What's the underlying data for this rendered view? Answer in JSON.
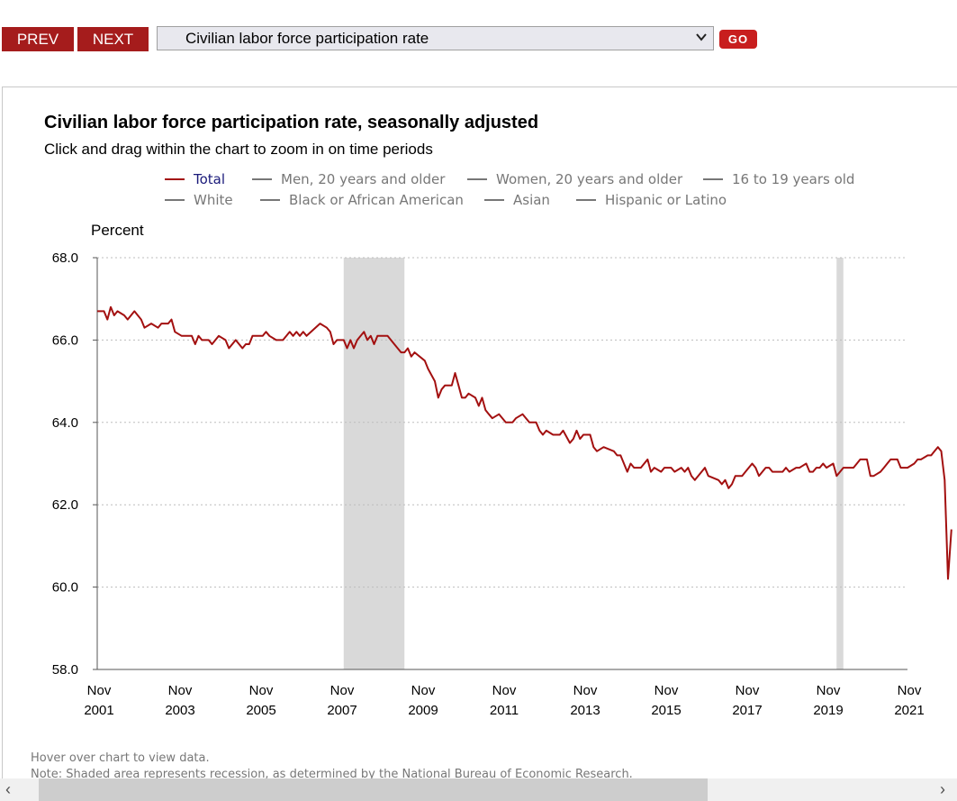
{
  "toolbar": {
    "prev_label": "PREV",
    "next_label": "NEXT",
    "select_value": "Civilian labor force participation rate",
    "go_label": "GO"
  },
  "chart_header": {
    "title": "Civilian labor force participation rate, seasonally adjusted",
    "subtitle": "Click and drag within the chart to zoom in on time periods"
  },
  "legend": [
    {
      "label": "Total",
      "active": true
    },
    {
      "label": "Men, 20 years and older",
      "active": false
    },
    {
      "label": "Women, 20 years and older",
      "active": false
    },
    {
      "label": "16 to 19 years old",
      "active": false
    },
    {
      "label": "White",
      "active": false
    },
    {
      "label": "Black or African American",
      "active": false
    },
    {
      "label": "Asian",
      "active": false
    },
    {
      "label": "Hispanic or Latino",
      "active": false
    }
  ],
  "footnotes": {
    "hover": "Hover over chart to view data.",
    "note": "Note: Shaded area represents recession, as determined by the National Bureau of Economic Research."
  },
  "colors": {
    "series": "#a31010",
    "recession": "#d9d9d9",
    "button": "#a51c1c",
    "go_button": "#c81e1e"
  },
  "icons": {
    "select_arrow": "chevron-down-icon",
    "scroll_left": "chevron-left-icon",
    "scroll_right": "chevron-right-icon"
  },
  "chart_data": {
    "type": "line",
    "ylabel": "Percent",
    "ylim": [
      58.0,
      68.0
    ],
    "yticks": [
      "58.0",
      "60.0",
      "62.0",
      "64.0",
      "66.0",
      "68.0"
    ],
    "xlim": [
      "2001-11",
      "2021-11"
    ],
    "xticks": [
      {
        "month": "Nov",
        "year": "2001"
      },
      {
        "month": "Nov",
        "year": "2003"
      },
      {
        "month": "Nov",
        "year": "2005"
      },
      {
        "month": "Nov",
        "year": "2007"
      },
      {
        "month": "Nov",
        "year": "2009"
      },
      {
        "month": "Nov",
        "year": "2011"
      },
      {
        "month": "Nov",
        "year": "2013"
      },
      {
        "month": "Nov",
        "year": "2015"
      },
      {
        "month": "Nov",
        "year": "2017"
      },
      {
        "month": "Nov",
        "year": "2019"
      },
      {
        "month": "Nov",
        "year": "2021"
      }
    ],
    "grid": "horizontal dotted",
    "recessions": [
      {
        "start": "2007-12",
        "end": "2009-06"
      },
      {
        "start": "2020-02",
        "end": "2020-04"
      }
    ],
    "series": [
      {
        "name": "Total",
        "points": [
          [
            "2001-11",
            66.7
          ],
          [
            "2002-01",
            66.7
          ],
          [
            "2002-02",
            66.5
          ],
          [
            "2002-03",
            66.8
          ],
          [
            "2002-04",
            66.6
          ],
          [
            "2002-05",
            66.7
          ],
          [
            "2002-07",
            66.6
          ],
          [
            "2002-08",
            66.5
          ],
          [
            "2002-10",
            66.7
          ],
          [
            "2002-12",
            66.5
          ],
          [
            "2003-01",
            66.3
          ],
          [
            "2003-03",
            66.4
          ],
          [
            "2003-05",
            66.3
          ],
          [
            "2003-06",
            66.4
          ],
          [
            "2003-08",
            66.4
          ],
          [
            "2003-09",
            66.5
          ],
          [
            "2003-10",
            66.2
          ],
          [
            "2003-12",
            66.1
          ],
          [
            "2004-03",
            66.1
          ],
          [
            "2004-04",
            65.9
          ],
          [
            "2004-05",
            66.1
          ],
          [
            "2004-06",
            66.0
          ],
          [
            "2004-08",
            66.0
          ],
          [
            "2004-09",
            65.9
          ],
          [
            "2004-11",
            66.1
          ],
          [
            "2005-01",
            66.0
          ],
          [
            "2005-02",
            65.8
          ],
          [
            "2005-04",
            66.0
          ],
          [
            "2005-06",
            65.8
          ],
          [
            "2005-07",
            65.9
          ],
          [
            "2005-08",
            65.9
          ],
          [
            "2005-09",
            66.1
          ],
          [
            "2005-12",
            66.1
          ],
          [
            "2006-01",
            66.2
          ],
          [
            "2006-02",
            66.1
          ],
          [
            "2006-04",
            66.0
          ],
          [
            "2006-06",
            66.0
          ],
          [
            "2006-08",
            66.2
          ],
          [
            "2006-09",
            66.1
          ],
          [
            "2006-10",
            66.2
          ],
          [
            "2006-11",
            66.1
          ],
          [
            "2006-12",
            66.2
          ],
          [
            "2007-01",
            66.1
          ],
          [
            "2007-05",
            66.4
          ],
          [
            "2007-07",
            66.3
          ],
          [
            "2007-08",
            66.2
          ],
          [
            "2007-09",
            65.9
          ],
          [
            "2007-10",
            66.0
          ],
          [
            "2007-12",
            66.0
          ],
          [
            "2008-01",
            65.8
          ],
          [
            "2008-02",
            66.0
          ],
          [
            "2008-03",
            65.8
          ],
          [
            "2008-04",
            66.0
          ],
          [
            "2008-06",
            66.2
          ],
          [
            "2008-07",
            66.0
          ],
          [
            "2008-08",
            66.1
          ],
          [
            "2008-09",
            65.9
          ],
          [
            "2008-10",
            66.1
          ],
          [
            "2009-01",
            66.1
          ],
          [
            "2009-03",
            65.9
          ],
          [
            "2009-05",
            65.7
          ],
          [
            "2009-06",
            65.7
          ],
          [
            "2009-07",
            65.8
          ],
          [
            "2009-08",
            65.6
          ],
          [
            "2009-09",
            65.7
          ],
          [
            "2009-12",
            65.5
          ],
          [
            "2010-01",
            65.3
          ],
          [
            "2010-03",
            65.0
          ],
          [
            "2010-04",
            64.6
          ],
          [
            "2010-05",
            64.8
          ],
          [
            "2010-06",
            64.9
          ],
          [
            "2010-08",
            64.9
          ],
          [
            "2010-09",
            65.2
          ],
          [
            "2010-10",
            64.9
          ],
          [
            "2010-11",
            64.6
          ],
          [
            "2010-12",
            64.6
          ],
          [
            "2011-01",
            64.7
          ],
          [
            "2011-03",
            64.6
          ],
          [
            "2011-04",
            64.4
          ],
          [
            "2011-05",
            64.6
          ],
          [
            "2011-06",
            64.3
          ],
          [
            "2011-07",
            64.2
          ],
          [
            "2011-08",
            64.1
          ],
          [
            "2011-10",
            64.2
          ],
          [
            "2011-12",
            64.0
          ],
          [
            "2012-02",
            64.0
          ],
          [
            "2012-03",
            64.1
          ],
          [
            "2012-05",
            64.2
          ],
          [
            "2012-07",
            64.0
          ],
          [
            "2012-09",
            64.0
          ],
          [
            "2012-10",
            63.8
          ],
          [
            "2012-11",
            63.7
          ],
          [
            "2012-12",
            63.8
          ],
          [
            "2013-02",
            63.7
          ],
          [
            "2013-04",
            63.7
          ],
          [
            "2013-05",
            63.8
          ],
          [
            "2013-07",
            63.5
          ],
          [
            "2013-08",
            63.6
          ],
          [
            "2013-09",
            63.8
          ],
          [
            "2013-10",
            63.6
          ],
          [
            "2013-11",
            63.7
          ],
          [
            "2014-01",
            63.7
          ],
          [
            "2014-02",
            63.4
          ],
          [
            "2014-03",
            63.3
          ],
          [
            "2014-05",
            63.4
          ],
          [
            "2014-08",
            63.3
          ],
          [
            "2014-09",
            63.2
          ],
          [
            "2014-10",
            63.2
          ],
          [
            "2014-12",
            62.8
          ],
          [
            "2015-01",
            63.0
          ],
          [
            "2015-02",
            62.9
          ],
          [
            "2015-04",
            62.9
          ],
          [
            "2015-06",
            63.1
          ],
          [
            "2015-07",
            62.8
          ],
          [
            "2015-08",
            62.9
          ],
          [
            "2015-10",
            62.8
          ],
          [
            "2015-11",
            62.9
          ],
          [
            "2016-01",
            62.9
          ],
          [
            "2016-02",
            62.8
          ],
          [
            "2016-04",
            62.9
          ],
          [
            "2016-05",
            62.8
          ],
          [
            "2016-06",
            62.9
          ],
          [
            "2016-07",
            62.7
          ],
          [
            "2016-08",
            62.6
          ],
          [
            "2016-10",
            62.8
          ],
          [
            "2016-11",
            62.9
          ],
          [
            "2016-12",
            62.7
          ],
          [
            "2017-03",
            62.6
          ],
          [
            "2017-04",
            62.5
          ],
          [
            "2017-05",
            62.6
          ],
          [
            "2017-06",
            62.4
          ],
          [
            "2017-07",
            62.5
          ],
          [
            "2017-08",
            62.7
          ],
          [
            "2017-10",
            62.7
          ],
          [
            "2017-11",
            62.8
          ],
          [
            "2018-01",
            63.0
          ],
          [
            "2018-02",
            62.9
          ],
          [
            "2018-03",
            62.7
          ],
          [
            "2018-05",
            62.9
          ],
          [
            "2018-06",
            62.9
          ],
          [
            "2018-07",
            62.8
          ],
          [
            "2018-10",
            62.8
          ],
          [
            "2018-11",
            62.9
          ],
          [
            "2018-12",
            62.8
          ],
          [
            "2019-02",
            62.9
          ],
          [
            "2019-03",
            62.9
          ],
          [
            "2019-05",
            63.0
          ],
          [
            "2019-06",
            62.8
          ],
          [
            "2019-07",
            62.8
          ],
          [
            "2019-08",
            62.9
          ],
          [
            "2019-09",
            62.9
          ],
          [
            "2019-10",
            63.0
          ],
          [
            "2019-11",
            62.9
          ],
          [
            "2020-01",
            63.0
          ],
          [
            "2020-02",
            62.7
          ],
          [
            "2020-04",
            62.9
          ],
          [
            "2020-06",
            62.9
          ],
          [
            "2020-07",
            62.9
          ],
          [
            "2020-08",
            63.0
          ],
          [
            "2020-09",
            63.1
          ],
          [
            "2020-11",
            63.1
          ],
          [
            "2020-12",
            62.7
          ],
          [
            "2021-01",
            62.7
          ],
          [
            "2021-03",
            62.8
          ],
          [
            "2021-04",
            62.9
          ],
          [
            "2021-05",
            63.0
          ],
          [
            "2021-06",
            63.1
          ],
          [
            "2021-08",
            63.1
          ],
          [
            "2021-09",
            62.9
          ],
          [
            "2021-10",
            62.9
          ],
          [
            "2021-11",
            62.9
          ],
          [
            "2022-01",
            63.0
          ],
          [
            "2022-02",
            63.1
          ],
          [
            "2022-03",
            63.1
          ],
          [
            "2022-05",
            63.2
          ],
          [
            "2022-06",
            63.2
          ],
          [
            "2022-07",
            63.3
          ],
          [
            "2022-08",
            63.4
          ],
          [
            "2022-09",
            63.3
          ],
          [
            "2022-10",
            62.6
          ],
          [
            "2022-11",
            60.2
          ],
          [
            "2022-12",
            61.4
          ]
        ]
      }
    ]
  }
}
